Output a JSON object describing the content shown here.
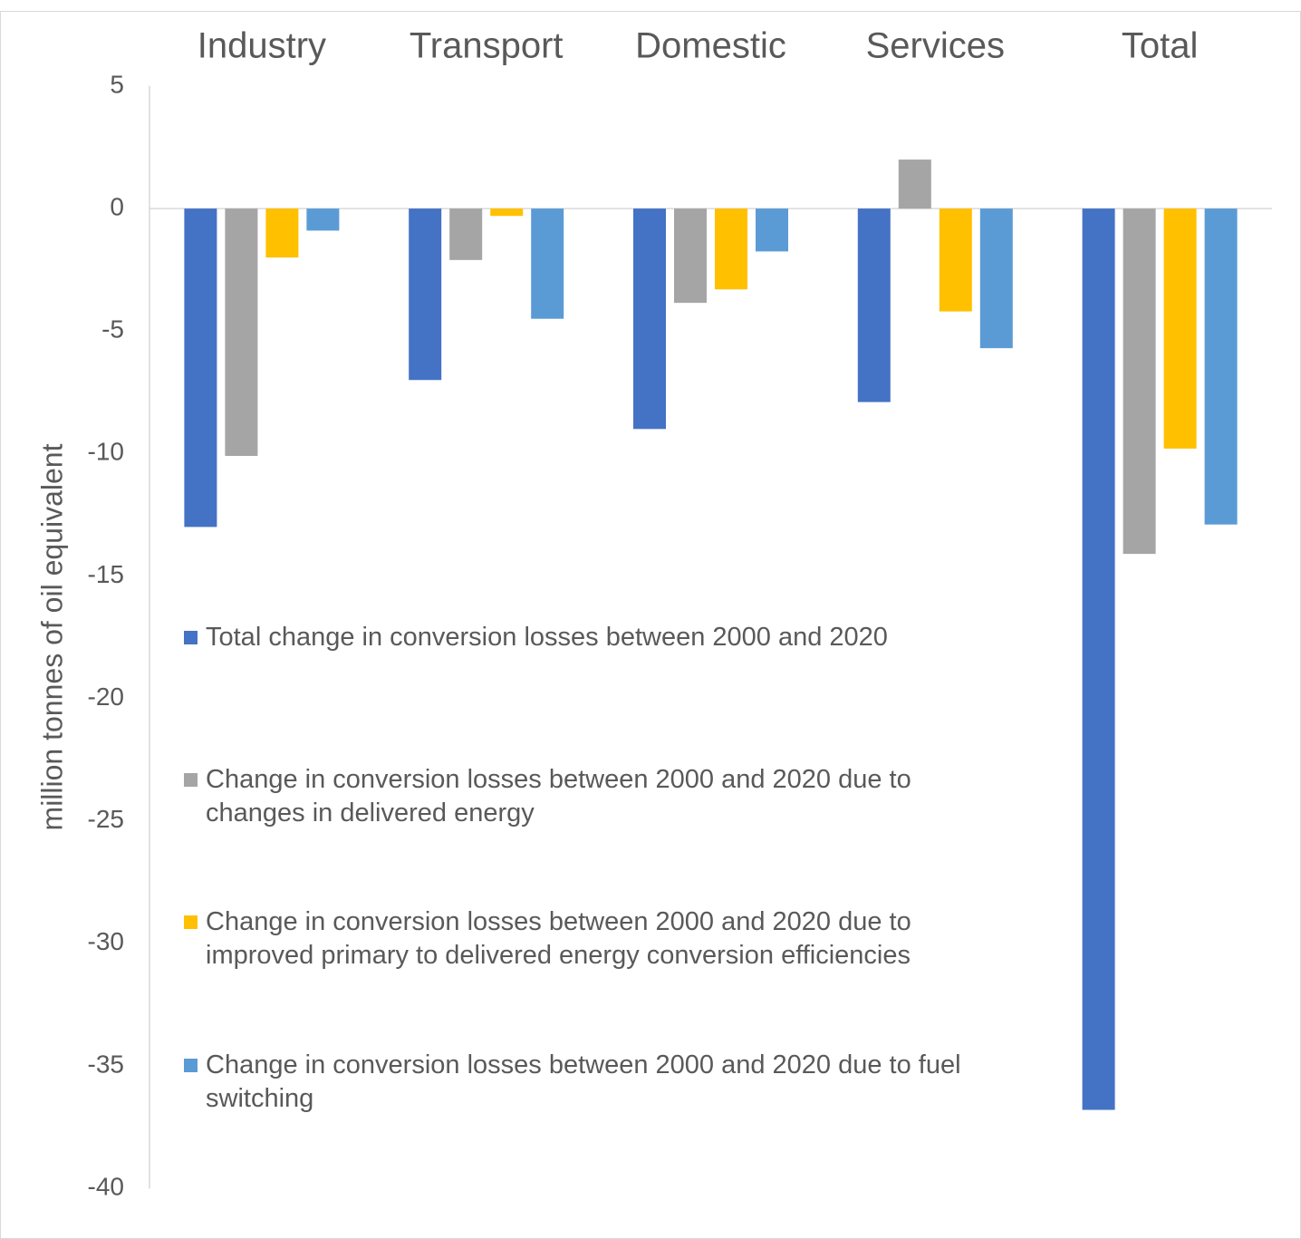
{
  "chart_data": {
    "type": "bar",
    "y_label": "million tonnes of oil equivalent",
    "categories": [
      "Industry",
      "Transport",
      "Domestic",
      "Services",
      "Total"
    ],
    "series": [
      {
        "name": "Total change in conversion losses between 2000 and 2020",
        "color": "#4472c4",
        "values": [
          -13,
          -7,
          -9,
          -7.9,
          -36.8
        ]
      },
      {
        "name": "Change in conversion losses between 2000 and 2020 due to changes in delivered energy",
        "color": "#a5a5a5",
        "values": [
          -10.1,
          -2.1,
          -3.85,
          2,
          -14.1
        ]
      },
      {
        "name": "Change in conversion losses between 2000 and 2020 due to improved primary to delivered energy conversion efficiencies",
        "color": "#ffc000",
        "values": [
          -2,
          -0.3,
          -3.3,
          -4.2,
          -9.8
        ]
      },
      {
        "name": "Change in conversion losses between 2000 and 2020 due to fuel switching",
        "color": "#5b9bd5",
        "values": [
          -0.9,
          -4.5,
          -1.75,
          -5.7,
          -12.9
        ]
      }
    ],
    "ylim": [
      -40,
      5
    ],
    "yticks": [
      5,
      0,
      -5,
      -10,
      -15,
      -20,
      -25,
      -30,
      -35,
      -40
    ]
  }
}
